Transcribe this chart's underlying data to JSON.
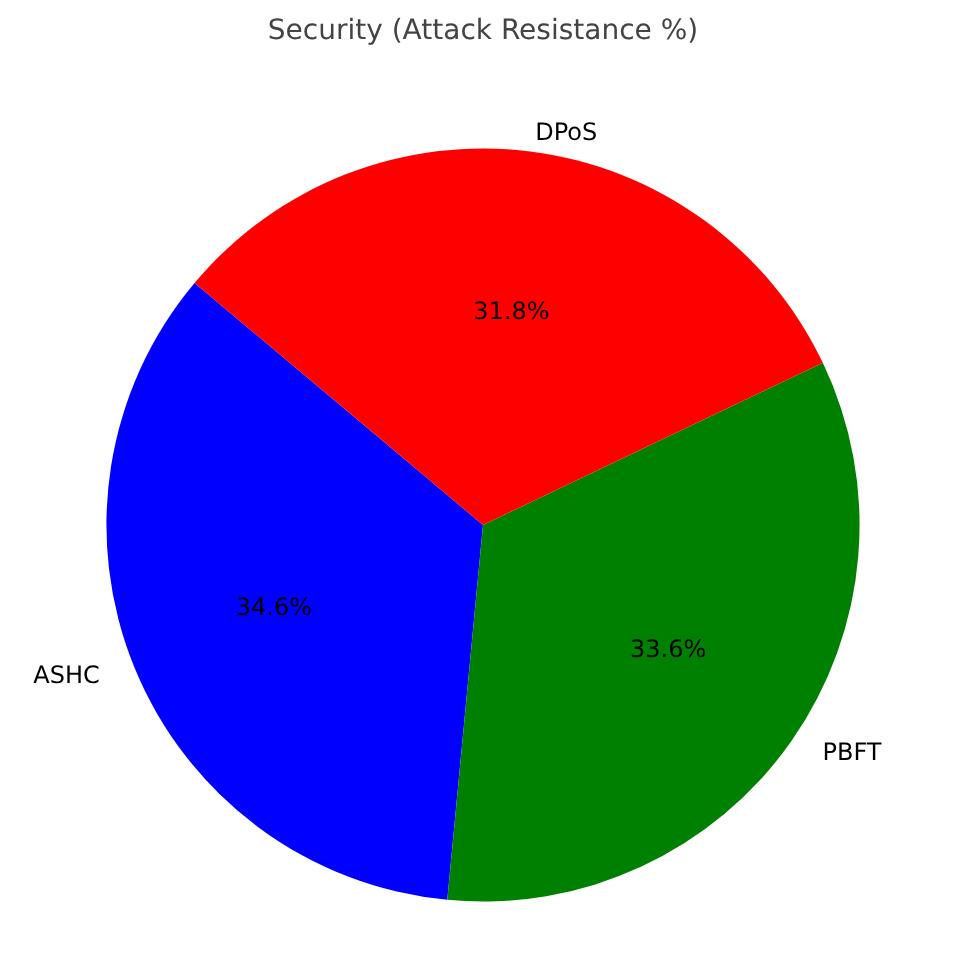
{
  "chart_data": {
    "type": "pie",
    "title": "Security (Attack Resistance %)",
    "categories": [
      "ASHC",
      "PBFT",
      "DPoS"
    ],
    "values": [
      34.6,
      33.6,
      31.8
    ],
    "colors": [
      "#0000ff",
      "#008000",
      "#ff0000"
    ],
    "value_labels": [
      "34.6%",
      "33.6%",
      "31.8%"
    ]
  }
}
